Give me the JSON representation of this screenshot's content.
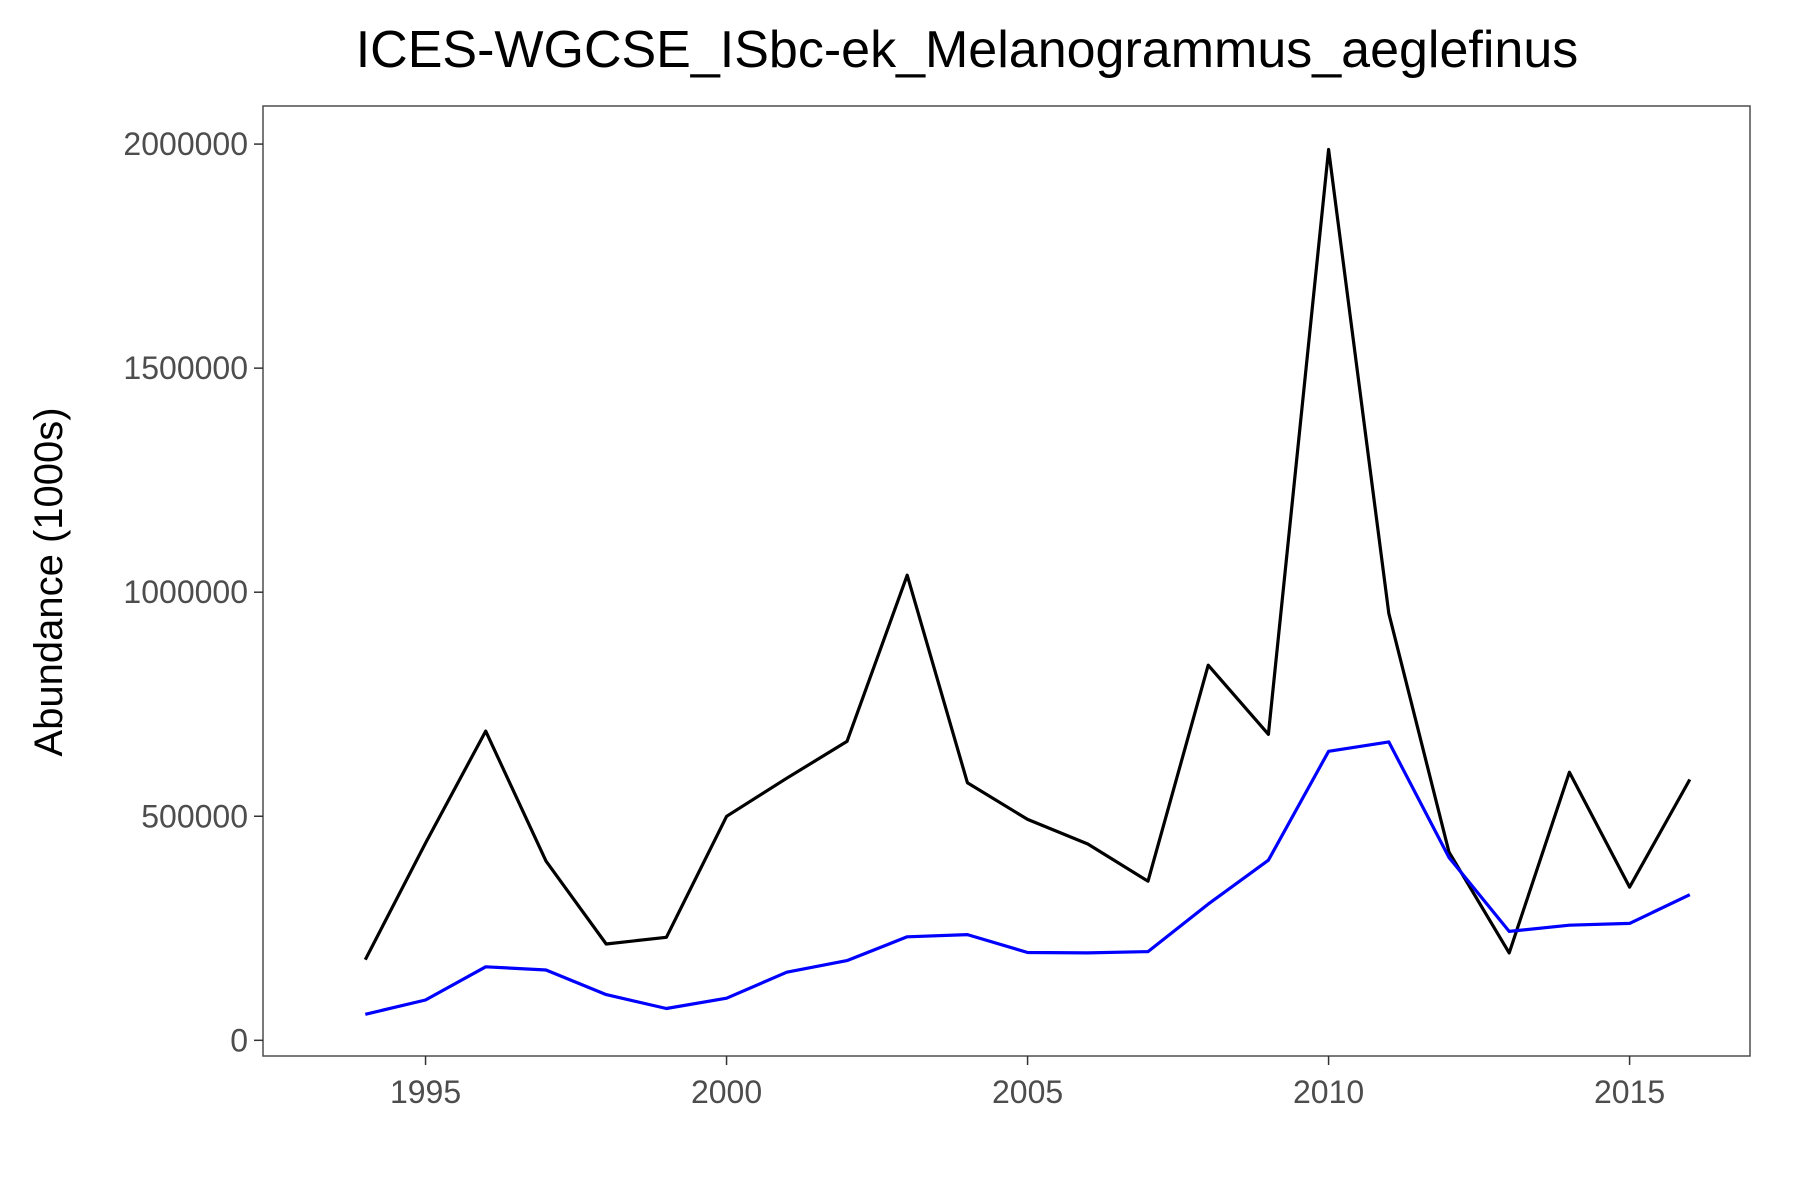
{
  "chart_data": {
    "type": "line",
    "title": "ICES-WGCSE_ISbc-ek_Melanogrammus_aeglefinus",
    "xlabel": "",
    "ylabel": "Abundance (1000s)",
    "xlim": [
      1992.3,
      2017.0
    ],
    "ylim": [
      -35000,
      2085000
    ],
    "x_ticks": [
      1995,
      2000,
      2005,
      2010,
      2015
    ],
    "x_tick_labels": [
      "1995",
      "2000",
      "2005",
      "2010",
      "2015"
    ],
    "y_ticks": [
      0,
      500000,
      1000000,
      1500000,
      2000000
    ],
    "y_tick_labels": [
      "0",
      "500000",
      "1000000",
      "1500000",
      "2000000"
    ],
    "grid": false,
    "legend": "none",
    "x": [
      1994,
      1995,
      1996,
      1997,
      1998,
      1999,
      2000,
      2001,
      2002,
      2003,
      2004,
      2005,
      2006,
      2007,
      2008,
      2009,
      2010,
      2011,
      2012,
      2013,
      2014,
      2015,
      2016
    ],
    "series": [
      {
        "color": "#000000",
        "values": [
          180000,
          440000,
          690000,
          400000,
          215000,
          230000,
          500000,
          585000,
          667000,
          1038000,
          575000,
          493000,
          438000,
          355000,
          837000,
          683000,
          1988000,
          953000,
          420000,
          195000,
          598000,
          342000,
          582000
        ]
      },
      {
        "color": "#0000ff",
        "values": [
          58000,
          90000,
          164000,
          157000,
          102000,
          71000,
          94000,
          152000,
          178000,
          231000,
          236000,
          196000,
          195000,
          198000,
          304000,
          402000,
          645000,
          666000,
          408000,
          243000,
          257000,
          261000,
          325000
        ]
      }
    ]
  }
}
